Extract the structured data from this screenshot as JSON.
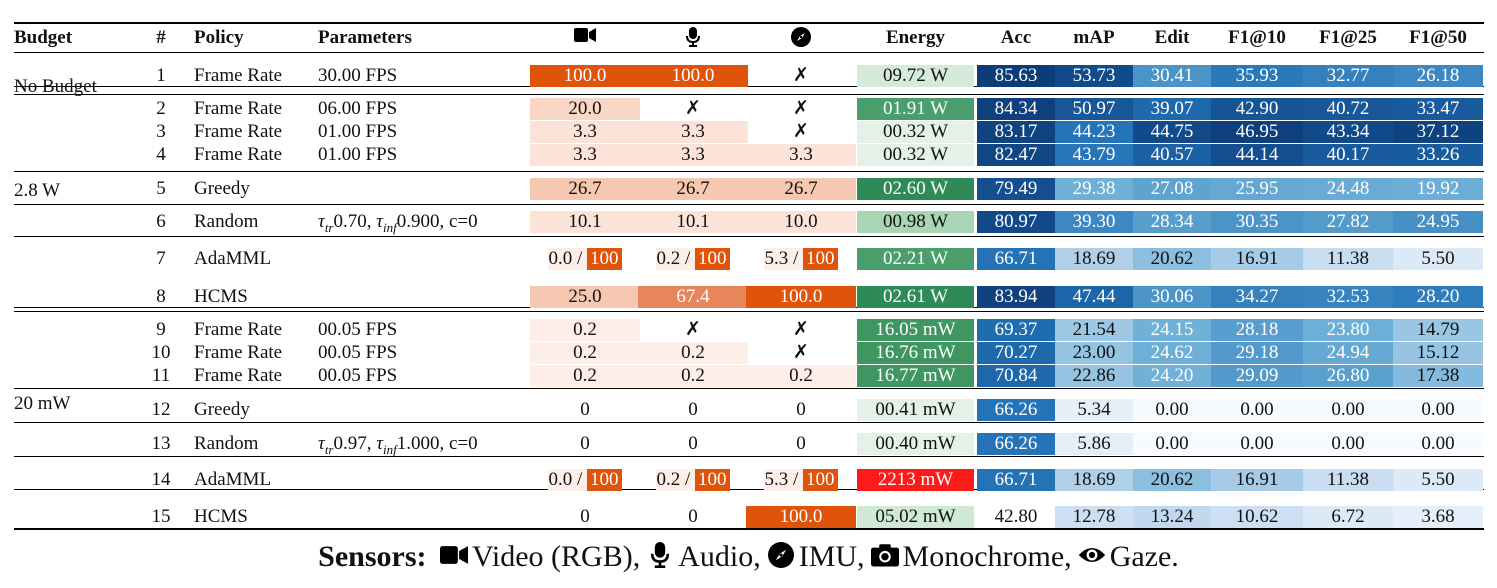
{
  "headers": {
    "budget": "Budget",
    "num": "#",
    "policy": "Policy",
    "params": "Parameters",
    "video_icon": "video-camera-icon",
    "audio_icon": "microphone-icon",
    "imu_icon": "compass-icon",
    "energy": "Energy",
    "acc": "Acc",
    "map": "mAP",
    "edit": "Edit",
    "f1_10": "F1@10",
    "f1_25": "F1@25",
    "f1_50": "F1@50"
  },
  "budget_groups": [
    {
      "label": "No Budget"
    },
    {
      "label": "2.8 W"
    },
    {
      "label": "20 mW"
    }
  ],
  "rows": [
    {
      "num": "1",
      "policy": "Frame Rate",
      "params": "30.00 FPS",
      "video": "100.0",
      "audio": "100.0",
      "imu": "✗",
      "energy": "09.72 W",
      "acc": "85.63",
      "map": "53.73",
      "edit": "30.41",
      "f1_10": "35.93",
      "f1_25": "32.77",
      "f1_50": "26.18"
    },
    {
      "num": "2",
      "policy": "Frame Rate",
      "params": "06.00 FPS",
      "video": "20.0",
      "audio": "✗",
      "imu": "✗",
      "energy": "01.91 W",
      "acc": "84.34",
      "map": "50.97",
      "edit": "39.07",
      "f1_10": "42.90",
      "f1_25": "40.72",
      "f1_50": "33.47"
    },
    {
      "num": "3",
      "policy": "Frame Rate",
      "params": "01.00 FPS",
      "video": "3.3",
      "audio": "3.3",
      "imu": "✗",
      "energy": "00.32 W",
      "acc": "83.17",
      "map": "44.23",
      "edit": "44.75",
      "f1_10": "46.95",
      "f1_25": "43.34",
      "f1_50": "37.12"
    },
    {
      "num": "4",
      "policy": "Frame Rate",
      "params": "01.00 FPS",
      "video": "3.3",
      "audio": "3.3",
      "imu": "3.3",
      "energy": "00.32 W",
      "acc": "82.47",
      "map": "43.79",
      "edit": "40.57",
      "f1_10": "44.14",
      "f1_25": "40.17",
      "f1_50": "33.26"
    },
    {
      "num": "5",
      "policy": "Greedy",
      "params": "",
      "video": "26.7",
      "audio": "26.7",
      "imu": "26.7",
      "energy": "02.60 W",
      "acc": "79.49",
      "map": "29.38",
      "edit": "27.08",
      "f1_10": "25.95",
      "f1_25": "24.48",
      "f1_50": "19.92"
    },
    {
      "num": "6",
      "policy": "Random",
      "params": "τtr0.70, τinf0.900, c=0",
      "video": "10.1",
      "audio": "10.1",
      "imu": "10.0",
      "energy": "00.98 W",
      "acc": "80.97",
      "map": "39.30",
      "edit": "28.34",
      "f1_10": "30.35",
      "f1_25": "27.82",
      "f1_50": "24.95"
    },
    {
      "num": "7",
      "policy": "AdaMML",
      "params": "",
      "video_a": "0.0 /",
      "video_b": "100",
      "audio_a": "0.2 /",
      "audio_b": "100",
      "imu_a": "5.3 /",
      "imu_b": "100",
      "energy": "02.21 W",
      "acc": "66.71",
      "map": "18.69",
      "edit": "20.62",
      "f1_10": "16.91",
      "f1_25": "11.38",
      "f1_50": "5.50"
    },
    {
      "num": "8",
      "policy": "HCMS",
      "params": "",
      "video": "25.0",
      "audio": "67.4",
      "imu": "100.0",
      "energy": "02.61 W",
      "acc": "83.94",
      "map": "47.44",
      "edit": "30.06",
      "f1_10": "34.27",
      "f1_25": "32.53",
      "f1_50": "28.20"
    },
    {
      "num": "9",
      "policy": "Frame Rate",
      "params": "00.05 FPS",
      "video": "0.2",
      "audio": "✗",
      "imu": "✗",
      "energy": "16.05 mW",
      "acc": "69.37",
      "map": "21.54",
      "edit": "24.15",
      "f1_10": "28.18",
      "f1_25": "23.80",
      "f1_50": "14.79"
    },
    {
      "num": "10",
      "policy": "Frame Rate",
      "params": "00.05 FPS",
      "video": "0.2",
      "audio": "0.2",
      "imu": "✗",
      "energy": "16.76 mW",
      "acc": "70.27",
      "map": "23.00",
      "edit": "24.62",
      "f1_10": "29.18",
      "f1_25": "24.94",
      "f1_50": "15.12"
    },
    {
      "num": "11",
      "policy": "Frame Rate",
      "params": "00.05 FPS",
      "video": "0.2",
      "audio": "0.2",
      "imu": "0.2",
      "energy": "16.77 mW",
      "acc": "70.84",
      "map": "22.86",
      "edit": "24.20",
      "f1_10": "29.09",
      "f1_25": "26.80",
      "f1_50": "17.38"
    },
    {
      "num": "12",
      "policy": "Greedy",
      "params": "",
      "video": "0",
      "audio": "0",
      "imu": "0",
      "energy": "00.41 mW",
      "acc": "66.26",
      "map": "5.34",
      "edit": "0.00",
      "f1_10": "0.00",
      "f1_25": "0.00",
      "f1_50": "0.00"
    },
    {
      "num": "13",
      "policy": "Random",
      "params": "τtr0.97, τinf1.000, c=0",
      "video": "0",
      "audio": "0",
      "imu": "0",
      "energy": "00.40 mW",
      "acc": "66.26",
      "map": "5.86",
      "edit": "0.00",
      "f1_10": "0.00",
      "f1_25": "0.00",
      "f1_50": "0.00"
    },
    {
      "num": "14",
      "policy": "AdaMML",
      "params": "",
      "video_a": "0.0 /",
      "video_b": "100",
      "audio_a": "0.2 /",
      "audio_b": "100",
      "imu_a": "5.3 /",
      "imu_b": "100",
      "energy": "2213 mW",
      "acc": "66.71",
      "map": "18.69",
      "edit": "20.62",
      "f1_10": "16.91",
      "f1_25": "11.38",
      "f1_50": "5.50"
    },
    {
      "num": "15",
      "policy": "HCMS",
      "params": "",
      "video": "0",
      "audio": "0",
      "imu": "100.0",
      "energy": "05.02 mW",
      "acc": "42.80",
      "map": "12.78",
      "edit": "13.24",
      "f1_10": "10.62",
      "f1_25": "6.72",
      "f1_50": "3.68"
    }
  ],
  "caption": {
    "bold": "Sensors:",
    "items": [
      "Video (RGB),",
      "Audio,",
      "IMU,",
      "Monochrome,",
      "Gaze."
    ],
    "icons": [
      "video-camera-icon",
      "microphone-icon",
      "compass-icon",
      "camera-icon",
      "eye-icon"
    ]
  },
  "colors": {
    "orange_full": "#e0530a",
    "orange_mid": "#e8855a",
    "salmon_26": "#f7c8b1",
    "salmon_20": "#f9d6c5",
    "salmon_light": "#fbe3d8",
    "salmon_faint": "#fdeee7",
    "green_dark": "#2e8b57",
    "red_alert": "#ff1a1a",
    "blue_dark": "#08306b"
  }
}
